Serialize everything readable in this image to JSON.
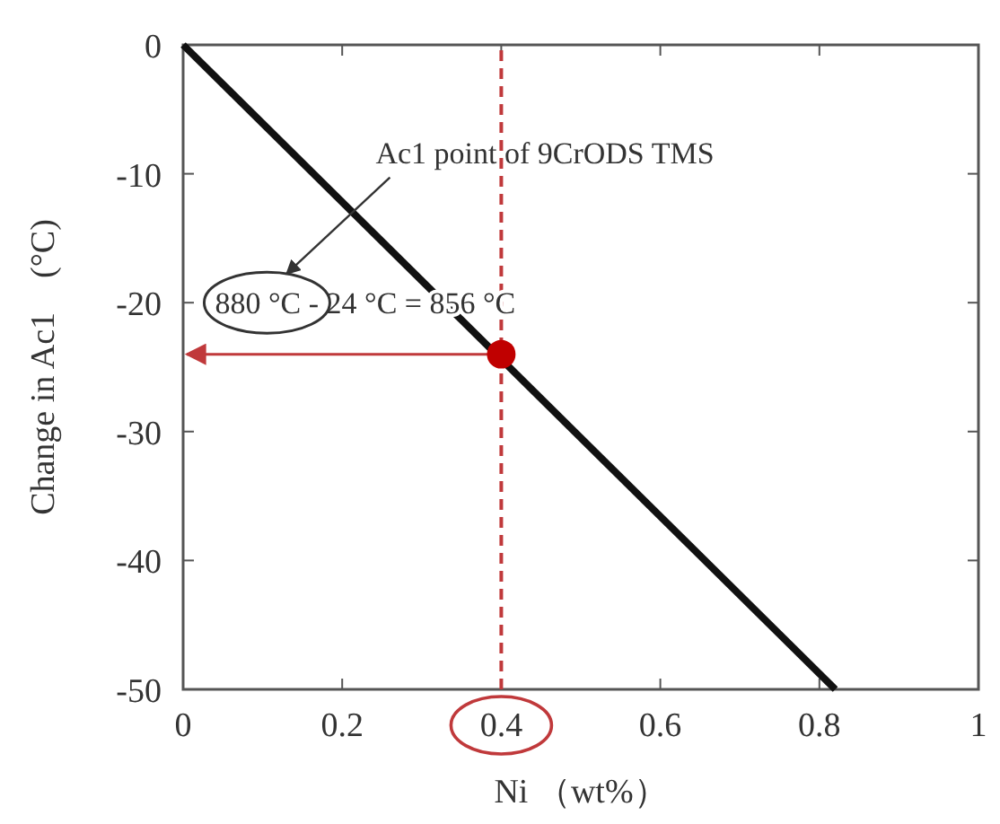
{
  "chart_data": {
    "type": "line",
    "xlabel": "Ni （wt%）",
    "ylabel": "Change in Ac1　(°C)",
    "xlim": [
      0,
      1
    ],
    "xticks": [
      0,
      0.2,
      0.4,
      0.6,
      0.8,
      1
    ],
    "ylim": [
      -50,
      0
    ],
    "yticks": [
      -50,
      -40,
      -30,
      -20,
      -10,
      0
    ],
    "series": [
      {
        "color": "#111111",
        "x": [
          0,
          0.82
        ],
        "values": [
          0,
          -50
        ],
        "marker": "none",
        "line_style": "solid"
      },
      {
        "type": "scatter",
        "color": "#c00000",
        "x": [
          0.4
        ],
        "values": [
          -24
        ],
        "marker": "circle"
      }
    ],
    "ref_lines": [
      {
        "axis": "x",
        "value": 0.4,
        "color": "#c0393b",
        "line_style": "dashed"
      }
    ],
    "annotations": [
      "Ac1 point of 9CrODS TMS",
      "880 °C - 24 °C = 856 °C"
    ],
    "grid": false
  }
}
